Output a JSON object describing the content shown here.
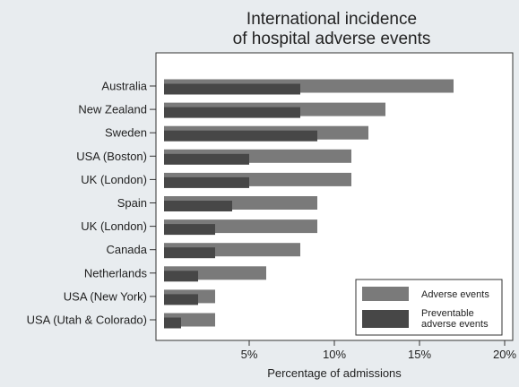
{
  "chart_data": {
    "type": "bar",
    "orientation": "horizontal",
    "title": "International incidence\nof hospital adverse events",
    "xlabel": "Percentage of admissions",
    "ylabel": "",
    "xlim": [
      0,
      20
    ],
    "xticks": [
      5,
      10,
      15,
      20
    ],
    "xtick_labels": [
      "5%",
      "10%",
      "15%",
      "20%"
    ],
    "categories": [
      "Australia",
      "New Zealand",
      "Sweden",
      "USA (Boston)",
      "UK (London)",
      "Spain",
      "UK (London)",
      "Canada",
      "Netherlands",
      "USA (New York)",
      "USA (Utah & Colorado)"
    ],
    "series": [
      {
        "name": "Adverse events",
        "color": "#7a7a7a",
        "values": [
          17,
          13,
          12,
          11,
          11,
          9,
          9,
          8,
          6,
          3,
          3
        ]
      },
      {
        "name": "Preventable\nadverse events",
        "color": "#474747",
        "values": [
          8,
          8,
          9,
          5,
          5,
          4,
          3,
          3,
          2,
          2,
          1
        ]
      }
    ],
    "grid": false,
    "legend_position": "bottom-right"
  }
}
